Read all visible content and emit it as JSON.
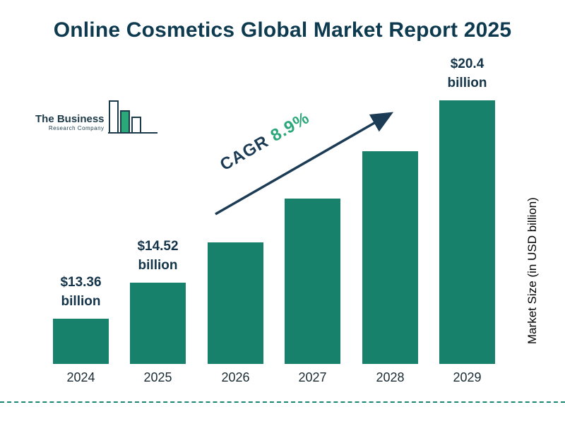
{
  "header": {
    "title": "Online Cosmetics Global Market Report 2025"
  },
  "logo": {
    "line1": "The Business",
    "line2": "Research Company"
  },
  "annotation": {
    "cagr_label": "CAGR",
    "cagr_value": "8.9%"
  },
  "colors": {
    "bar": "#17816c",
    "title_text": "#0e3a50",
    "accent_green": "#2aa87a",
    "dark_navy": "#1c3b55",
    "dashed_line": "#1b8672"
  },
  "chart_data": {
    "type": "bar",
    "title": "Online Cosmetics Global Market Report 2025",
    "categories": [
      "2024",
      "2025",
      "2026",
      "2027",
      "2028",
      "2029"
    ],
    "values": [
      13.36,
      14.52,
      15.81,
      17.22,
      18.75,
      20.4
    ],
    "value_labels": [
      "$13.36\nbillion",
      "$14.52\nbillion",
      "",
      "",
      "",
      "$20.4\nbillion"
    ],
    "xlabel": "",
    "ylabel": "Market Size (in USD billion)",
    "annotation": "CAGR 8.9%",
    "legend_position": "none",
    "grid": false,
    "ylim": [
      11.9,
      21
    ]
  }
}
